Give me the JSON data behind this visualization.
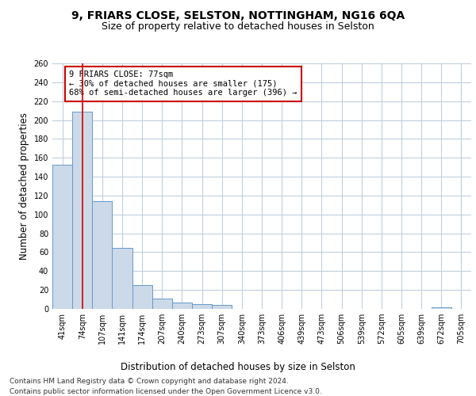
{
  "title_line1": "9, FRIARS CLOSE, SELSTON, NOTTINGHAM, NG16 6QA",
  "title_line2": "Size of property relative to detached houses in Selston",
  "xlabel": "Distribution of detached houses by size in Selston",
  "ylabel": "Number of detached properties",
  "bar_color": "#ccd9e8",
  "bar_edge_color": "#6699cc",
  "categories": [
    "41sqm",
    "74sqm",
    "107sqm",
    "141sqm",
    "174sqm",
    "207sqm",
    "240sqm",
    "273sqm",
    "307sqm",
    "340sqm",
    "373sqm",
    "406sqm",
    "439sqm",
    "473sqm",
    "506sqm",
    "539sqm",
    "572sqm",
    "605sqm",
    "639sqm",
    "672sqm",
    "705sqm"
  ],
  "values": [
    153,
    209,
    114,
    65,
    25,
    11,
    7,
    5,
    4,
    0,
    0,
    0,
    0,
    0,
    0,
    0,
    0,
    0,
    0,
    2,
    0
  ],
  "ylim": [
    0,
    260
  ],
  "yticks": [
    0,
    20,
    40,
    60,
    80,
    100,
    120,
    140,
    160,
    180,
    200,
    220,
    240,
    260
  ],
  "vline_x": 1.0,
  "vline_color": "#cc0000",
  "annotation_text": "9 FRIARS CLOSE: 77sqm\n← 30% of detached houses are smaller (175)\n68% of semi-detached houses are larger (396) →",
  "footer_line1": "Contains HM Land Registry data © Crown copyright and database right 2024.",
  "footer_line2": "Contains public sector information licensed under the Open Government Licence v3.0.",
  "background_color": "#ffffff",
  "grid_color": "#c0cfdf",
  "title_fontsize": 10,
  "subtitle_fontsize": 9,
  "axis_label_fontsize": 8.5,
  "tick_fontsize": 7,
  "annotation_fontsize": 7.5,
  "footer_fontsize": 6.5
}
